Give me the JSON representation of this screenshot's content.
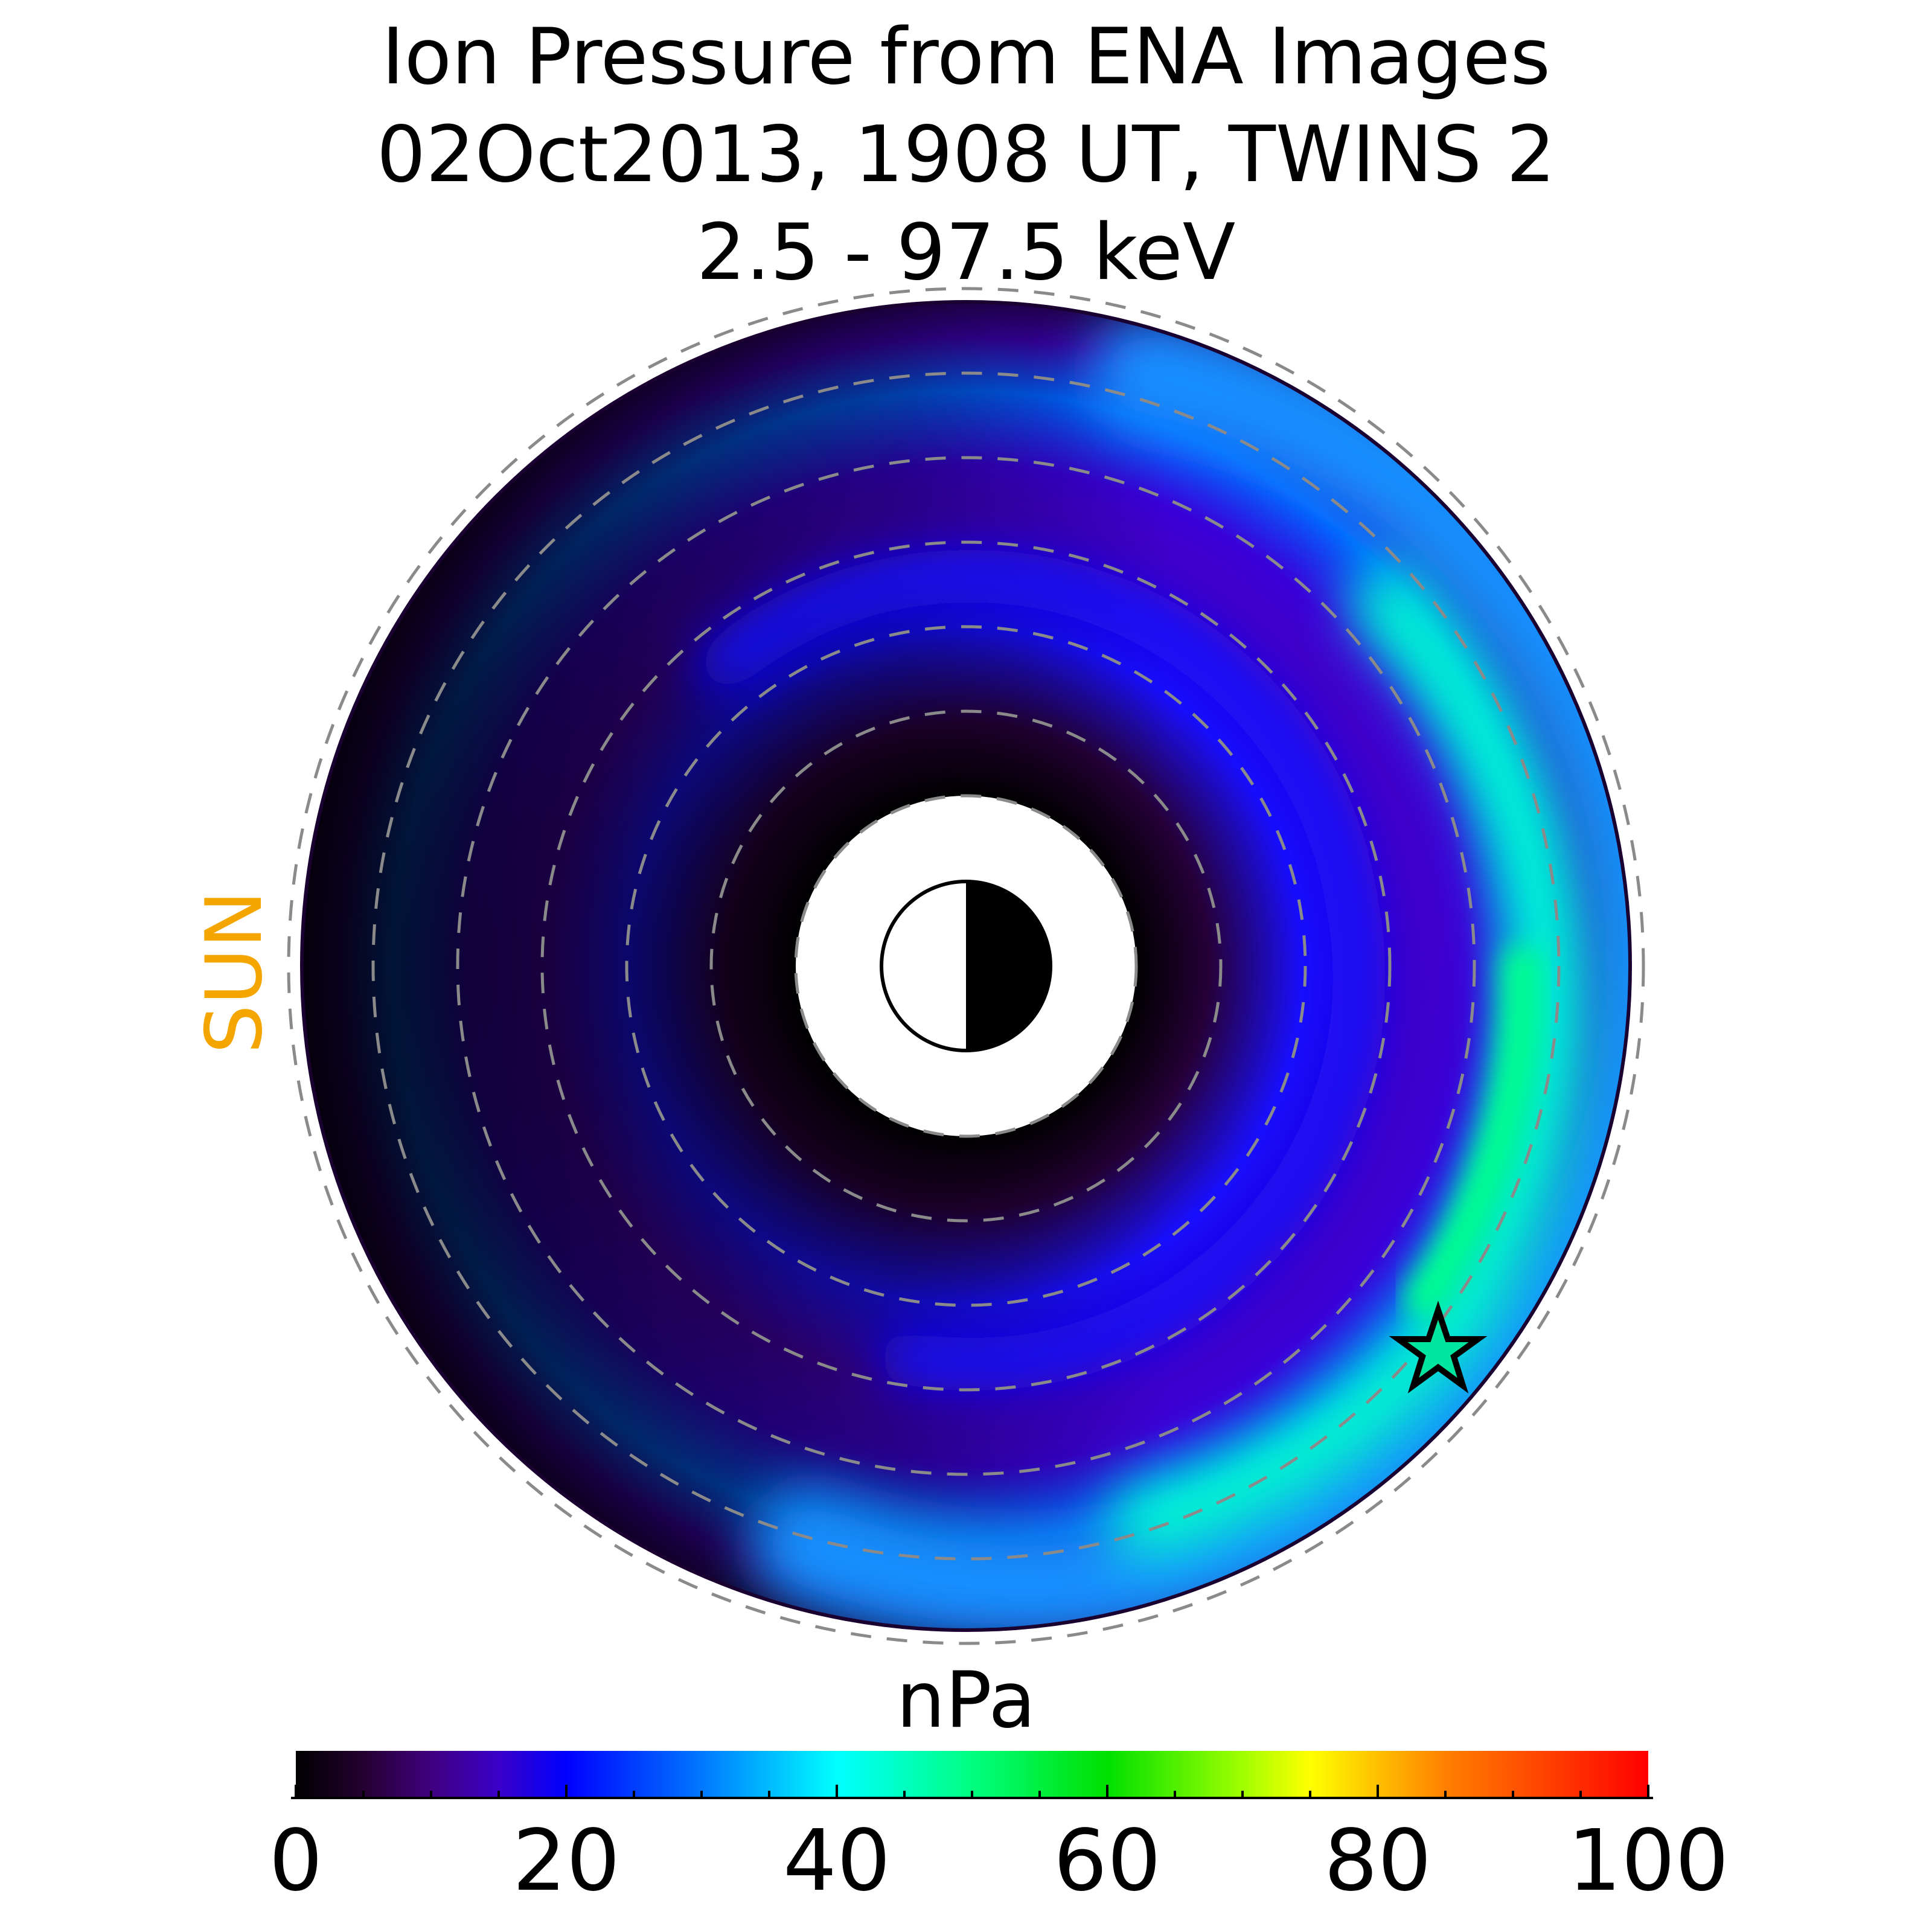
{
  "figure": {
    "title_lines": [
      "Ion Pressure from  ENA Images",
      "02Oct2013, 1908 UT,  TWINS 2",
      "2.5 - 97.5 keV"
    ],
    "sun_label": "SUN",
    "sun_label_color": "#f5a500"
  },
  "chart_data": {
    "type": "heatmap",
    "projection": "polar equatorial map (sun to the left)",
    "title": "Ion Pressure from  ENA Images\n02Oct2013, 1908 UT,  TWINS 2\n2.5 - 97.5 keV",
    "colorbar": {
      "label": "nPa",
      "range": [
        0,
        100
      ],
      "tick_labels": [
        "0",
        "20",
        "40",
        "60",
        "80",
        "100"
      ],
      "ticks": [
        0,
        20,
        40,
        60,
        80,
        100
      ],
      "minor_tick_step": 5,
      "colormap_stops": [
        {
          "value": 0,
          "color": "#000000"
        },
        {
          "value": 5,
          "color": "#240030"
        },
        {
          "value": 10,
          "color": "#400080"
        },
        {
          "value": 15,
          "color": "#3a00c8"
        },
        {
          "value": 20,
          "color": "#0000ff"
        },
        {
          "value": 30,
          "color": "#0078ff"
        },
        {
          "value": 40,
          "color": "#00ffff"
        },
        {
          "value": 50,
          "color": "#00ff80"
        },
        {
          "value": 60,
          "color": "#00e000"
        },
        {
          "value": 70,
          "color": "#a0ff00"
        },
        {
          "value": 75,
          "color": "#ffff00"
        },
        {
          "value": 85,
          "color": "#ff8000"
        },
        {
          "value": 100,
          "color": "#ff0000"
        }
      ]
    },
    "pressure_pattern": {
      "peak_value_nPa": 50,
      "peak_location": "dusk-midnight sector, outer ring",
      "dayside_value_nPa": 8
    },
    "spacecraft_marker": "star",
    "earth_symbol": "day/night half disk",
    "dashed_reference_circles": 6
  }
}
